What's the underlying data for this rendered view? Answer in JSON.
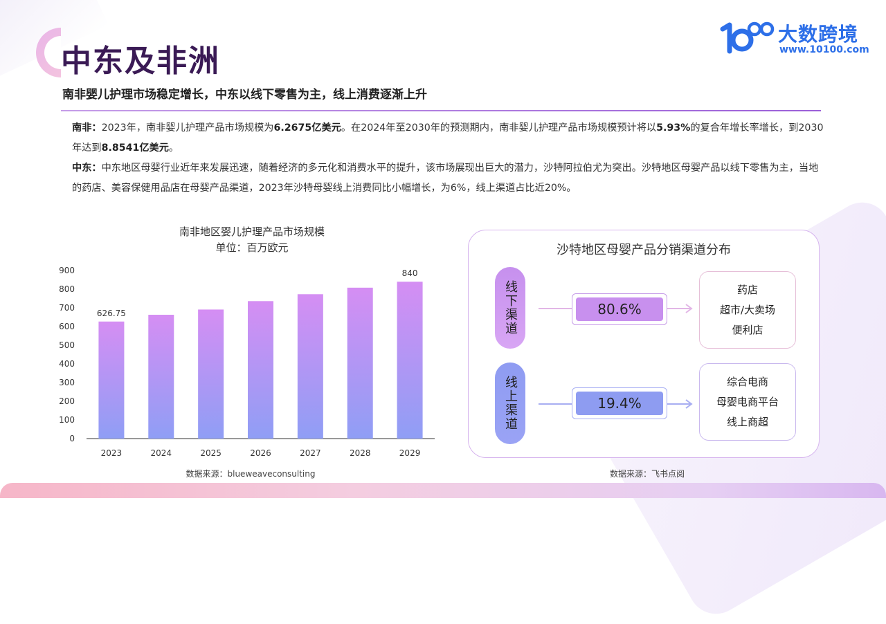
{
  "header": {
    "title": "中东及非洲",
    "subtitle": "南非婴儿护理市场稳定增长，中东以线下零售为主，线上消费逐渐上升"
  },
  "logo": {
    "name": "大数跨境",
    "url": "www.10100.com",
    "mark": "10"
  },
  "paragraphs": {
    "p1": {
      "label": "南非：",
      "t1": "2023年，南非婴儿护理产品市场规模为",
      "b1": "6.2675亿美元",
      "t2": "。在2024年至2030年的预测期内，南非婴儿护理产品市场规模预计将以",
      "b2": "5.93%",
      "t3": "的复合年增长率增长，到2030年达到",
      "b3": "8.8541亿美元",
      "t4": "。"
    },
    "p2": {
      "label": "中东：",
      "text": "中东地区母婴行业近年来发展迅速，随着经济的多元化和消费水平的提升，该市场展现出巨大的潜力，沙特阿拉伯尤为突出。沙特地区母婴产品以线下零售为主，当地的药店、美容保健用品店在母婴产品渠道，2023年沙特母婴线上消费同比小幅增长，为6%，线上渠道占比近20%。"
    }
  },
  "chart_data": {
    "type": "bar",
    "title": "南非地区婴儿护理产品市场规模",
    "subtitle": "单位：百万欧元",
    "categories": [
      "2023",
      "2024",
      "2025",
      "2026",
      "2027",
      "2028",
      "2029"
    ],
    "values": [
      626.75,
      663,
      691,
      736,
      773,
      808,
      840
    ],
    "data_labels": {
      "0": "626.75",
      "6": "840"
    },
    "yticks": [
      "0",
      "100",
      "200",
      "300",
      "400",
      "500",
      "600",
      "700",
      "800",
      "900"
    ],
    "ylim": [
      0,
      900
    ],
    "grid": false,
    "colors": {
      "top": "#d58ef3",
      "bottom": "#8f9ef5"
    },
    "source": "数据来源：blueweaveconsulting"
  },
  "channels": {
    "title": "沙特地区母婴产品分销渠道分布",
    "offline": {
      "name": "线下渠道",
      "percent": "80.6%",
      "items": [
        "药店",
        "超市/大卖场",
        "便利店"
      ]
    },
    "online": {
      "name": "线上渠道",
      "percent": "19.4%",
      "items": [
        "综合电商",
        "母婴电商平台",
        "线上商超"
      ]
    },
    "source": "数据来源：飞书点阅"
  }
}
